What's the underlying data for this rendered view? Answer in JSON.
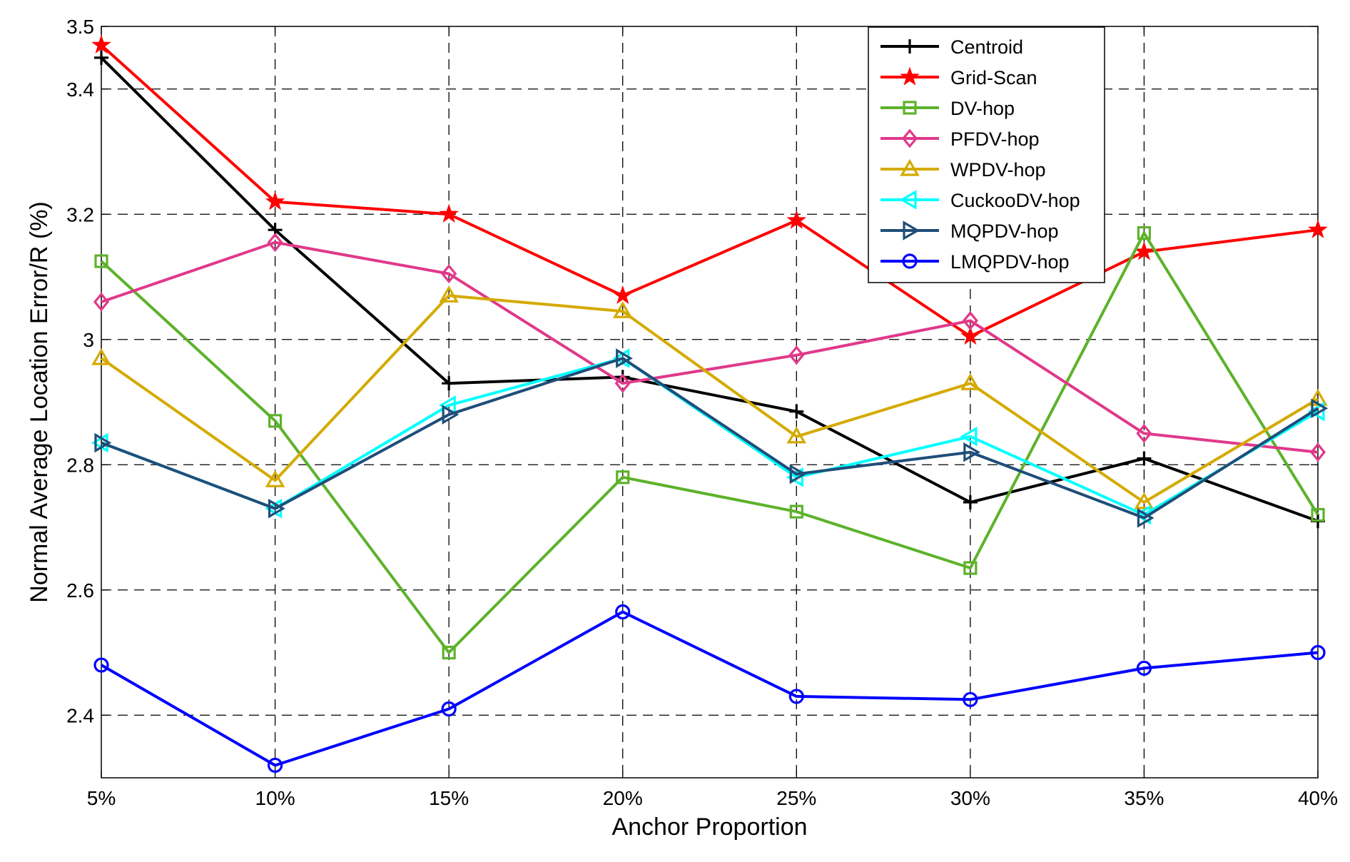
{
  "chart_data": {
    "type": "line",
    "title": "",
    "xlabel": "Anchor Proportion",
    "ylabel": "Normal Average Location Error/R (%)",
    "categories": [
      "5%",
      "10%",
      "15%",
      "20%",
      "25%",
      "30%",
      "35%",
      "40%"
    ],
    "ylim": [
      2.3,
      3.5
    ],
    "yticks": [
      2.4,
      2.6,
      2.8,
      3,
      3.2,
      3.4,
      3.5
    ],
    "ytick_labels": [
      "2.4",
      "2.6",
      "2.8",
      "3",
      "3.2",
      "3.4",
      "3.5"
    ],
    "grid": true,
    "legend_position": "top-right",
    "series": [
      {
        "name": "Centroid",
        "color": "#000000",
        "marker": "plus",
        "values": [
          3.45,
          3.175,
          2.93,
          2.94,
          2.885,
          2.74,
          2.81,
          2.71
        ]
      },
      {
        "name": "Grid-Scan",
        "color": "#ff0000",
        "marker": "star",
        "values": [
          3.47,
          3.22,
          3.2,
          3.07,
          3.19,
          3.005,
          3.14,
          3.175
        ]
      },
      {
        "name": "DV-hop",
        "color": "#5db22b",
        "marker": "square",
        "values": [
          3.125,
          2.87,
          2.5,
          2.78,
          2.725,
          2.635,
          3.17,
          2.72
        ]
      },
      {
        "name": "PFDV-hop",
        "color": "#e0398a",
        "marker": "diamond",
        "values": [
          3.06,
          3.155,
          3.105,
          2.93,
          2.975,
          3.03,
          2.85,
          2.82
        ]
      },
      {
        "name": "WPDV-hop",
        "color": "#d4aa00",
        "marker": "triangle-up",
        "values": [
          2.97,
          2.775,
          3.07,
          3.045,
          2.845,
          2.93,
          2.74,
          2.905
        ]
      },
      {
        "name": "CuckooDV-hop",
        "color": "#00ffff",
        "marker": "triangle-left",
        "values": [
          2.835,
          2.73,
          2.895,
          2.97,
          2.78,
          2.845,
          2.72,
          2.885
        ]
      },
      {
        "name": "MQPDV-hop",
        "color": "#1f4e79",
        "marker": "triangle-right",
        "values": [
          2.835,
          2.73,
          2.88,
          2.97,
          2.785,
          2.82,
          2.715,
          2.89
        ]
      },
      {
        "name": "LMQPDV-hop",
        "color": "#0000ff",
        "marker": "circle",
        "values": [
          2.48,
          2.32,
          2.41,
          2.565,
          2.43,
          2.425,
          2.475,
          2.5
        ]
      }
    ]
  }
}
